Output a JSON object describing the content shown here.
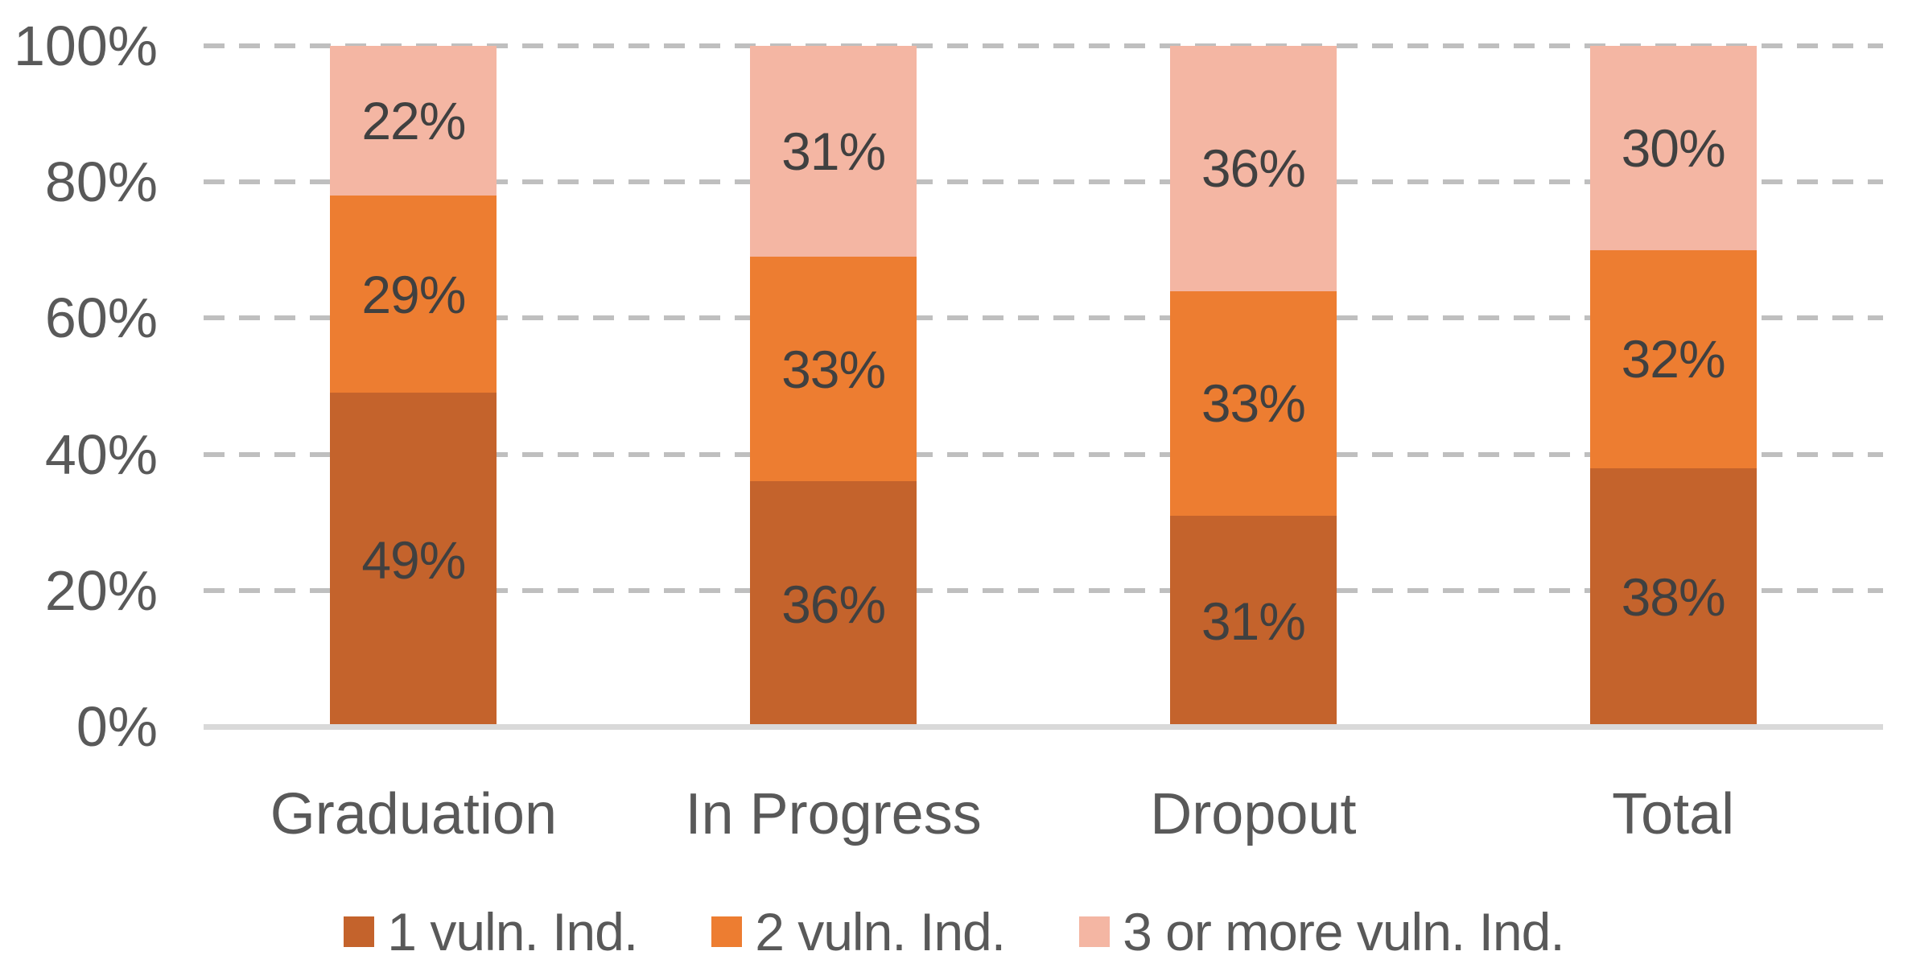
{
  "chart_data": {
    "type": "bar",
    "variant": "stacked-100",
    "title": "",
    "categories": [
      "Graduation",
      "In Progress",
      "Dropout",
      "Total"
    ],
    "series": [
      {
        "name": "1 vuln. Ind.",
        "color": "#C4632C",
        "values": [
          49,
          36,
          31,
          38
        ]
      },
      {
        "name": "2 vuln. Ind.",
        "color": "#ED7D31",
        "values": [
          29,
          33,
          33,
          32
        ]
      },
      {
        "name": "3 or more vuln. Ind.",
        "color": "#F4B6A3",
        "values": [
          22,
          31,
          36,
          30
        ]
      }
    ],
    "data_labels": {
      "format": "{v}%",
      "color": "#404040"
    },
    "y_axis": {
      "tick_labels": [
        "0%",
        "20%",
        "40%",
        "60%",
        "80%",
        "100%"
      ],
      "min": 0,
      "max": 100,
      "step": 20,
      "text_color": "#595959"
    },
    "x_axis": {
      "text_color": "#595959",
      "line_color": "#D9D9D9"
    },
    "gridlines": {
      "style": "dashed",
      "color": "#BFBFBF"
    },
    "legend": {
      "position": "bottom",
      "text_color": "#595959"
    }
  }
}
